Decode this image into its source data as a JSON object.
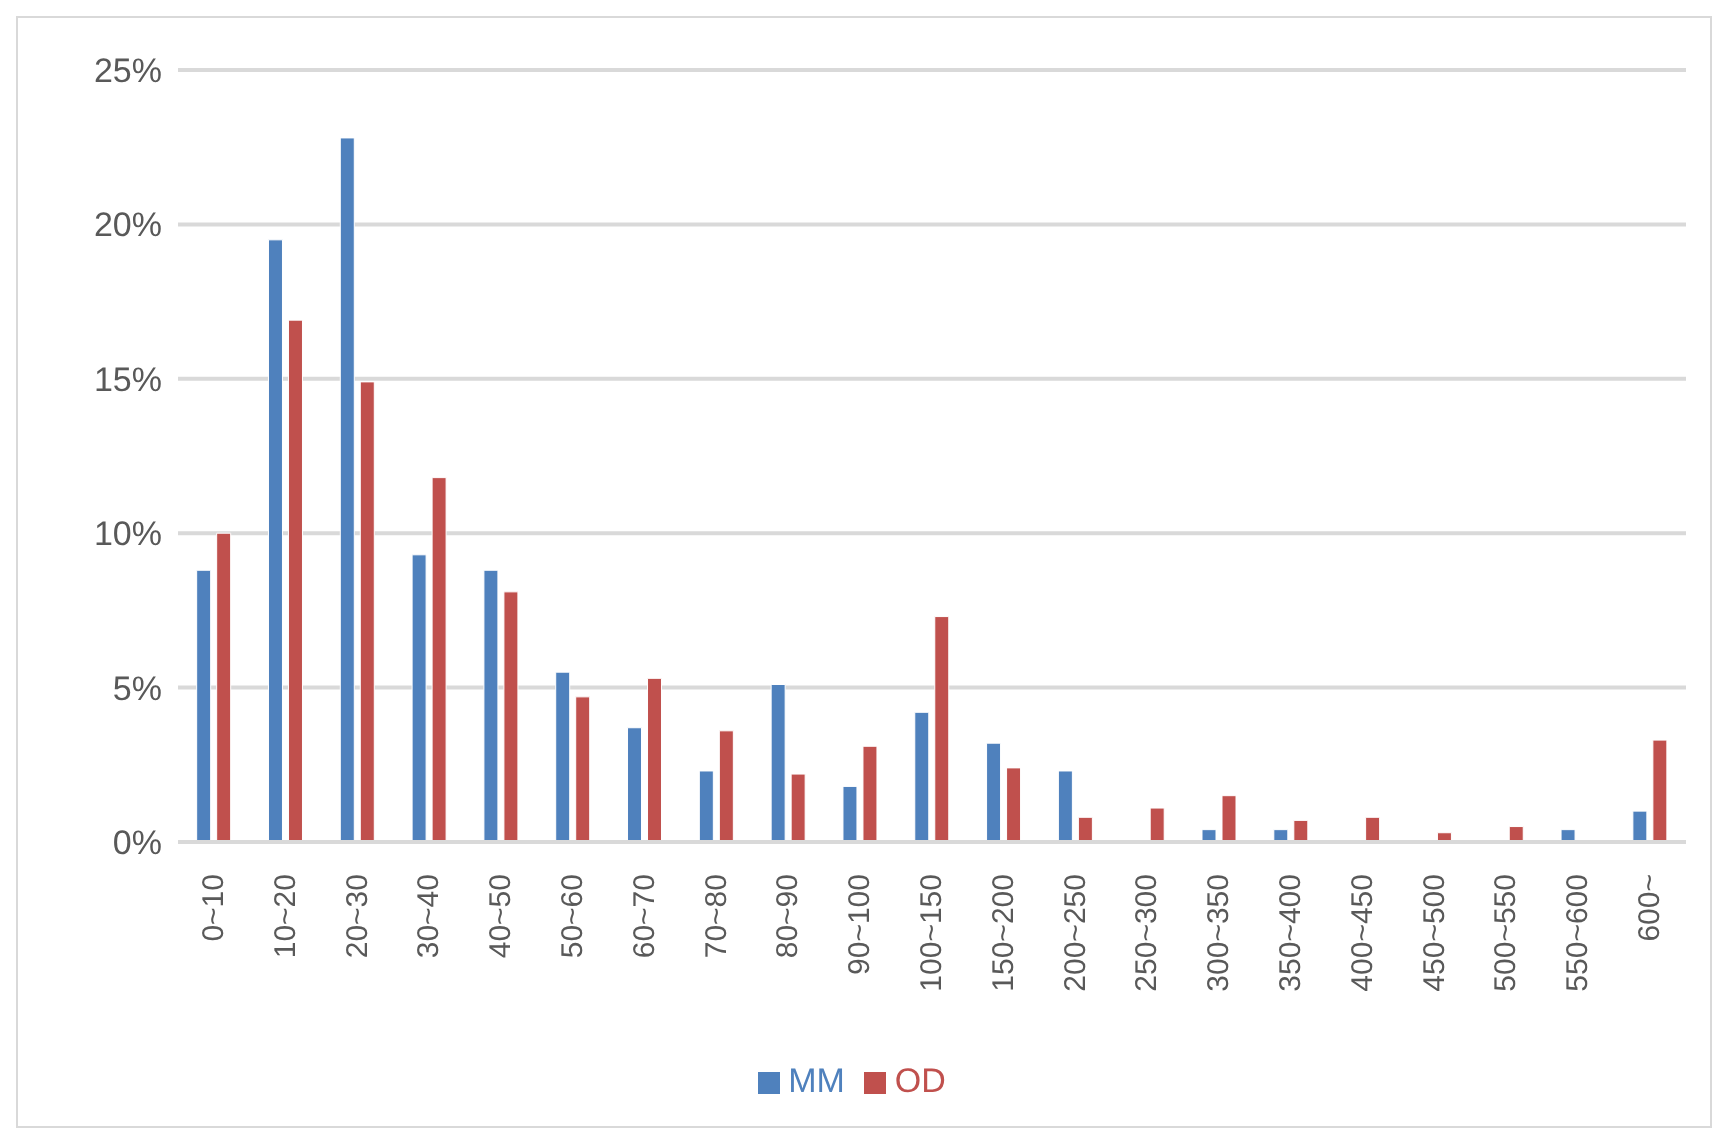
{
  "chart_data": {
    "type": "bar",
    "categories": [
      "0~10",
      "10~20",
      "20~30",
      "30~40",
      "40~50",
      "50~60",
      "60~70",
      "70~80",
      "80~90",
      "90~100",
      "100~150",
      "150~200",
      "200~250",
      "250~300",
      "300~350",
      "350~400",
      "400~450",
      "450~500",
      "500~550",
      "550~600",
      "600~"
    ],
    "series": [
      {
        "name": "MM",
        "color": "#4f81bd",
        "values": [
          8.8,
          19.5,
          22.8,
          9.3,
          8.8,
          5.5,
          3.7,
          2.3,
          5.1,
          1.8,
          4.2,
          3.2,
          2.3,
          0,
          0.4,
          0.4,
          0,
          0,
          0,
          0.4,
          1.0
        ]
      },
      {
        "name": "OD",
        "color": "#c0504d",
        "values": [
          10.0,
          16.9,
          14.9,
          11.8,
          8.1,
          4.7,
          5.3,
          3.6,
          2.2,
          3.1,
          7.3,
          2.4,
          0.8,
          1.1,
          1.5,
          0.7,
          0.8,
          0.3,
          0.5,
          0,
          3.3
        ]
      }
    ],
    "ylim": [
      0,
      25
    ],
    "yticks": [
      {
        "value": 0,
        "label": "0%"
      },
      {
        "value": 5,
        "label": "5%"
      },
      {
        "value": 10,
        "label": "10%"
      },
      {
        "value": 15,
        "label": "15%"
      },
      {
        "value": 20,
        "label": "20%"
      },
      {
        "value": 25,
        "label": "25%"
      }
    ],
    "grid": "y",
    "legend": "bottom"
  }
}
